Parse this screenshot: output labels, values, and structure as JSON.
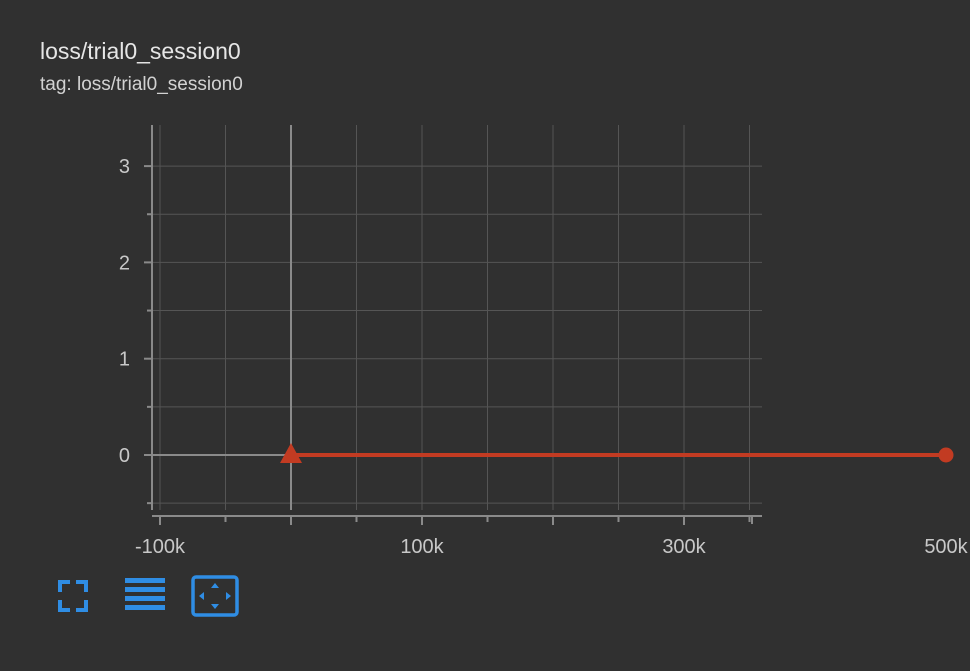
{
  "card": {
    "title": "loss/trial0_session0",
    "subtitle": "tag: loss/trial0_session0"
  },
  "toolbar": {
    "buttons": [
      {
        "icon": "fullscreen-icon"
      },
      {
        "icon": "lines-icon"
      },
      {
        "icon": "fit-domain-icon"
      }
    ]
  },
  "colors": {
    "background": "#303030",
    "series": "#c23b22",
    "grid": "#555555",
    "axis": "#8a8a8a",
    "accent": "#2f8de4"
  },
  "chart_data": {
    "type": "line",
    "title": "loss/trial0_session0",
    "xlabel": "",
    "ylabel": "",
    "xlim": [
      -200000,
      700000
    ],
    "ylim": [
      -0.5,
      3.4
    ],
    "x_ticks": [
      -100000,
      100000,
      300000,
      500000
    ],
    "x_tick_labels": [
      "-100k",
      "100k",
      "300k",
      "500k"
    ],
    "y_ticks": [
      0,
      1,
      2,
      3
    ],
    "y_tick_labels": [
      "0",
      "1",
      "2",
      "3"
    ],
    "grid": true,
    "series": [
      {
        "x": [
          0,
          500000
        ],
        "y": [
          0,
          0
        ],
        "color": "#c23b22"
      }
    ]
  }
}
